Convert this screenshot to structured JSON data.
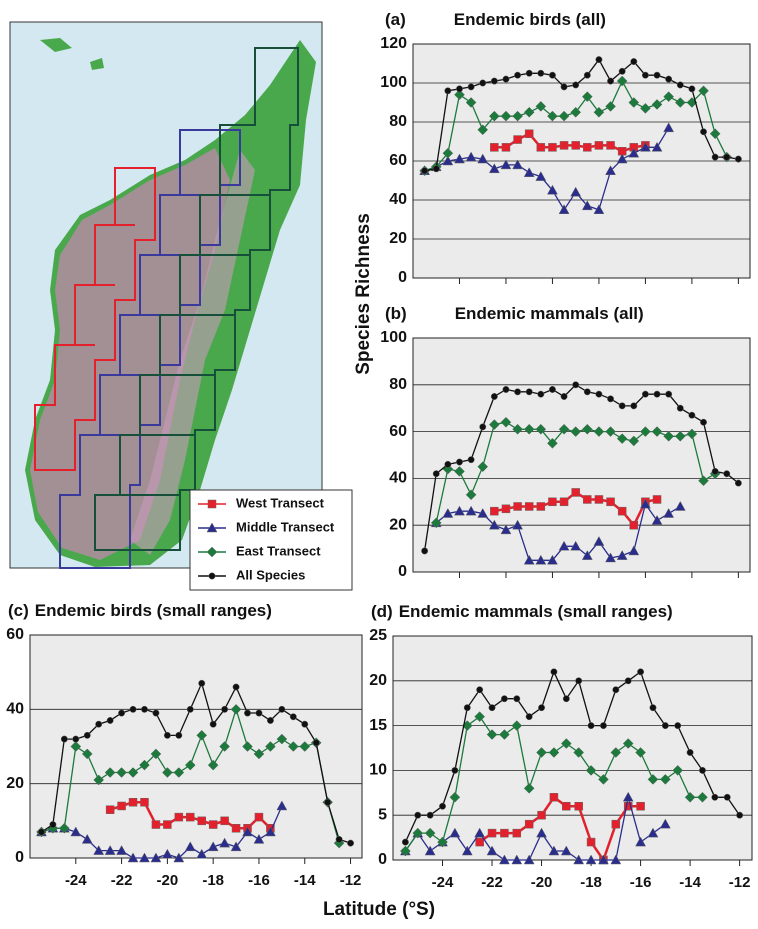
{
  "figure": {
    "ylabel": "Species Richness",
    "xlabel": "Latitude (°S)"
  },
  "chart_data": [
    {
      "type": "line",
      "panel": "(a)",
      "title": "Endemic birds (all)",
      "x": [
        -25.5,
        -25,
        -24.5,
        -24,
        -23.5,
        -23,
        -22.5,
        -22,
        -21.5,
        -21,
        -20.5,
        -20,
        -19.5,
        -19,
        -18.5,
        -18,
        -17.5,
        -17,
        -16.5,
        -16,
        -15.5,
        -15,
        -14.5,
        -14,
        -13.5,
        -13,
        -12.5,
        -12
      ],
      "xlim": [
        -26,
        -11.5
      ],
      "xticks": [
        -24,
        -22,
        -20,
        -18,
        -16,
        -14,
        -12
      ],
      "xtick_labels": false,
      "ylim": [
        0,
        120
      ],
      "yticks": [
        0,
        20,
        40,
        60,
        80,
        100,
        120
      ],
      "grid": true,
      "series": [
        {
          "name": "West Transect",
          "color": "#e3202b",
          "marker": "square",
          "values": [
            null,
            null,
            null,
            null,
            null,
            null,
            67,
            67,
            71,
            74,
            67,
            67,
            68,
            68,
            67,
            68,
            68,
            65,
            67,
            68,
            null,
            null,
            null,
            null,
            null,
            null,
            null,
            null
          ]
        },
        {
          "name": "Middle Transect",
          "color": "#2a2d8c",
          "marker": "triangle",
          "values": [
            55,
            57,
            60,
            61,
            62,
            61,
            56,
            58,
            58,
            54,
            52,
            45,
            35,
            44,
            37,
            35,
            55,
            61,
            64,
            67,
            67,
            77,
            null,
            null,
            null,
            null,
            null,
            null
          ]
        },
        {
          "name": "East Transect",
          "color": "#1c7a3c",
          "marker": "diamond",
          "values": [
            55,
            57,
            64,
            94,
            90,
            76,
            83,
            83,
            83,
            85,
            88,
            83,
            83,
            85,
            93,
            85,
            88,
            101,
            90,
            87,
            89,
            93,
            90,
            90,
            96,
            74,
            62,
            null
          ]
        },
        {
          "name": "All Species",
          "color": "#111111",
          "marker": "circle",
          "values": [
            55,
            56,
            96,
            97,
            98,
            100,
            101,
            102,
            104,
            105,
            105,
            104,
            98,
            99,
            104,
            112,
            101,
            106,
            111,
            104,
            104,
            102,
            99,
            97,
            75,
            62,
            62,
            61
          ]
        }
      ]
    },
    {
      "type": "line",
      "panel": "(b)",
      "title": "Endemic mammals (all)",
      "x": [
        -25.5,
        -25,
        -24.5,
        -24,
        -23.5,
        -23,
        -22.5,
        -22,
        -21.5,
        -21,
        -20.5,
        -20,
        -19.5,
        -19,
        -18.5,
        -18,
        -17.5,
        -17,
        -16.5,
        -16,
        -15.5,
        -15,
        -14.5,
        -14,
        -13.5,
        -13,
        -12.5,
        -12
      ],
      "xlim": [
        -26,
        -11.5
      ],
      "xticks": [
        -24,
        -22,
        -20,
        -18,
        -16,
        -14,
        -12
      ],
      "xtick_labels": false,
      "ylim": [
        0,
        100
      ],
      "yticks": [
        0,
        20,
        40,
        60,
        80,
        100
      ],
      "grid": true,
      "series": [
        {
          "name": "West Transect",
          "color": "#e3202b",
          "marker": "square",
          "values": [
            null,
            null,
            null,
            null,
            null,
            null,
            26,
            27,
            28,
            28,
            28,
            30,
            30,
            34,
            31,
            31,
            30,
            26,
            20,
            30,
            31,
            null,
            null,
            null,
            null,
            null,
            null,
            null
          ]
        },
        {
          "name": "Middle Transect",
          "color": "#2a2d8c",
          "marker": "triangle",
          "values": [
            null,
            21,
            25,
            26,
            26,
            25,
            20,
            18,
            20,
            5,
            5,
            5,
            11,
            11,
            7,
            13,
            6,
            7,
            9,
            29,
            22,
            25,
            28,
            null,
            null,
            null,
            null,
            null
          ]
        },
        {
          "name": "East Transect",
          "color": "#1c7a3c",
          "marker": "diamond",
          "values": [
            null,
            21,
            44,
            43,
            33,
            45,
            63,
            64,
            61,
            61,
            61,
            55,
            61,
            60,
            61,
            60,
            60,
            57,
            56,
            60,
            60,
            58,
            58,
            59,
            39,
            42,
            null,
            null
          ]
        },
        {
          "name": "All Species",
          "color": "#111111",
          "marker": "circle",
          "values": [
            9,
            42,
            46,
            47,
            48,
            62,
            75,
            78,
            77,
            77,
            76,
            78,
            75,
            80,
            77,
            76,
            74,
            71,
            71,
            76,
            76,
            76,
            70,
            67,
            64,
            43,
            42,
            38
          ]
        }
      ]
    },
    {
      "type": "line",
      "panel": "(c)",
      "title": "Endemic birds (small ranges)",
      "x": [
        -25.5,
        -25,
        -24.5,
        -24,
        -23.5,
        -23,
        -22.5,
        -22,
        -21.5,
        -21,
        -20.5,
        -20,
        -19.5,
        -19,
        -18.5,
        -18,
        -17.5,
        -17,
        -16.5,
        -16,
        -15.5,
        -15,
        -14.5,
        -14,
        -13.5,
        -13,
        -12.5,
        -12
      ],
      "xlim": [
        -26,
        -11.5
      ],
      "xticks": [
        -24,
        -22,
        -20,
        -18,
        -16,
        -14,
        -12
      ],
      "xtick_labels": true,
      "ylim": [
        0,
        60
      ],
      "yticks": [
        0,
        20,
        40,
        60
      ],
      "grid": true,
      "series": [
        {
          "name": "West Transect",
          "color": "#e3202b",
          "marker": "square",
          "values": [
            null,
            null,
            null,
            null,
            null,
            null,
            13,
            14,
            15,
            15,
            9,
            9,
            11,
            11,
            10,
            9,
            10,
            8,
            8,
            11,
            8,
            null,
            null,
            null,
            null,
            null,
            null,
            null
          ]
        },
        {
          "name": "Middle Transect",
          "color": "#2a2d8c",
          "marker": "triangle",
          "values": [
            7,
            8,
            8,
            7,
            5,
            2,
            2,
            2,
            0,
            0,
            0,
            1,
            0,
            3,
            1,
            3,
            4,
            3,
            7,
            5,
            7,
            14,
            null,
            null,
            null,
            null,
            null,
            null
          ]
        },
        {
          "name": "East Transect",
          "color": "#1c7a3c",
          "marker": "diamond",
          "values": [
            7,
            8,
            8,
            30,
            28,
            21,
            23,
            23,
            23,
            25,
            28,
            23,
            23,
            25,
            33,
            25,
            30,
            40,
            30,
            28,
            30,
            32,
            30,
            30,
            31,
            15,
            4,
            null
          ]
        },
        {
          "name": "All Species",
          "color": "#111111",
          "marker": "circle",
          "values": [
            7,
            9,
            32,
            32,
            33,
            36,
            37,
            39,
            40,
            40,
            39,
            33,
            33,
            40,
            47,
            36,
            40,
            46,
            39,
            39,
            37,
            40,
            38,
            36,
            31,
            15,
            5,
            4
          ]
        }
      ]
    },
    {
      "type": "line",
      "panel": "(d)",
      "title": "Endemic mammals (small ranges)",
      "x": [
        -25.5,
        -25,
        -24.5,
        -24,
        -23.5,
        -23,
        -22.5,
        -22,
        -21.5,
        -21,
        -20.5,
        -20,
        -19.5,
        -19,
        -18.5,
        -18,
        -17.5,
        -17,
        -16.5,
        -16,
        -15.5,
        -15,
        -14.5,
        -14,
        -13.5,
        -13,
        -12.5,
        -12
      ],
      "xlim": [
        -26,
        -11.5
      ],
      "xticks": [
        -24,
        -22,
        -20,
        -18,
        -16,
        -14,
        -12
      ],
      "xtick_labels": true,
      "ylim": [
        0,
        25
      ],
      "yticks": [
        0,
        5,
        10,
        15,
        20,
        25
      ],
      "grid": true,
      "series": [
        {
          "name": "West Transect",
          "color": "#e3202b",
          "marker": "square",
          "values": [
            null,
            null,
            null,
            null,
            null,
            null,
            2,
            3,
            3,
            3,
            4,
            5,
            7,
            6,
            6,
            2,
            0,
            4,
            6,
            6,
            null,
            null,
            null,
            null,
            null,
            null,
            null,
            null
          ]
        },
        {
          "name": "Middle Transect",
          "color": "#2a2d8c",
          "marker": "triangle",
          "values": [
            1,
            3,
            1,
            2,
            3,
            1,
            3,
            1,
            0,
            0,
            0,
            3,
            1,
            1,
            0,
            0,
            0,
            0,
            7,
            2,
            3,
            4,
            null,
            null,
            null,
            null,
            null,
            null
          ]
        },
        {
          "name": "East Transect",
          "color": "#1c7a3c",
          "marker": "diamond",
          "values": [
            1,
            3,
            3,
            2,
            7,
            15,
            16,
            14,
            14,
            15,
            8,
            12,
            12,
            13,
            12,
            10,
            9,
            12,
            13,
            12,
            9,
            9,
            10,
            7,
            7,
            null,
            null,
            null
          ]
        },
        {
          "name": "All Species",
          "color": "#111111",
          "marker": "circle",
          "values": [
            2,
            5,
            5,
            6,
            10,
            17,
            19,
            17,
            18,
            18,
            16,
            17,
            21,
            18,
            20,
            15,
            15,
            19,
            20,
            21,
            17,
            15,
            15,
            12,
            10,
            7,
            7,
            5
          ]
        }
      ]
    }
  ]
}
